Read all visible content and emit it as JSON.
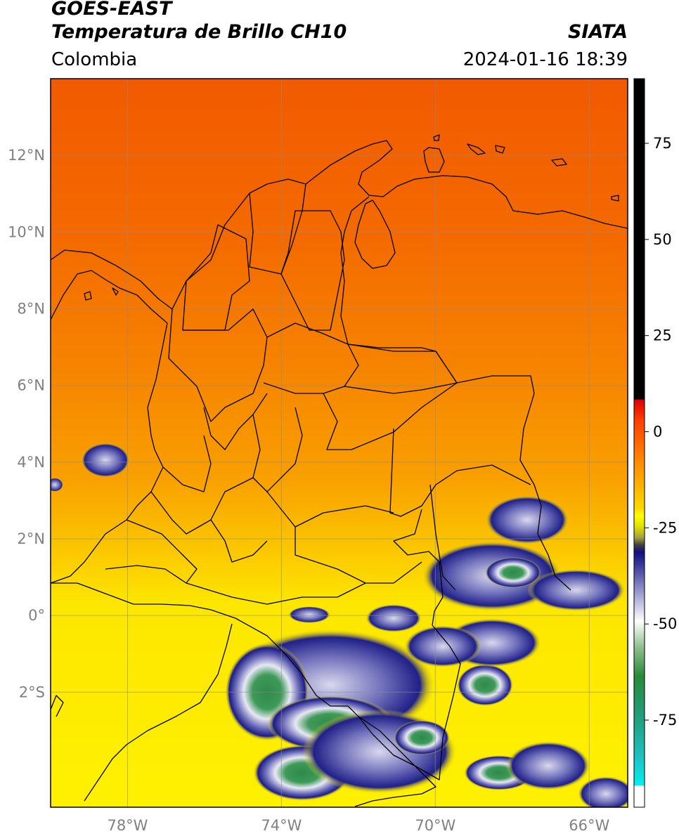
{
  "header": {
    "title_line1": "GOES-EAST",
    "title_line2": "Temperatura de Brillo CH10",
    "organization": "SIATA",
    "region": "Colombia",
    "timestamp": "2024-01-16 18:39"
  },
  "map": {
    "lon_range": [
      -80,
      -65
    ],
    "lat_range": [
      -5,
      14
    ],
    "lat_ticks": [
      {
        "value": 12,
        "label": "12°N"
      },
      {
        "value": 10,
        "label": "10°N"
      },
      {
        "value": 8,
        "label": "8°N"
      },
      {
        "value": 6,
        "label": "6°N"
      },
      {
        "value": 4,
        "label": "4°N"
      },
      {
        "value": 2,
        "label": "2°N"
      },
      {
        "value": 0,
        "label": "0°"
      },
      {
        "value": -2,
        "label": "2°S"
      }
    ],
    "lon_ticks": [
      {
        "value": -78,
        "label": "78°W"
      },
      {
        "value": -74,
        "label": "74°W"
      },
      {
        "value": -70,
        "label": "70°W"
      },
      {
        "value": -66,
        "label": "66°W"
      }
    ],
    "grid": true
  },
  "colorbar": {
    "ticks": [
      {
        "value": 75,
        "label": "75"
      },
      {
        "value": 50,
        "label": "50"
      },
      {
        "value": 25,
        "label": "25"
      },
      {
        "value": 0,
        "label": "0"
      },
      {
        "value": -25,
        "label": "-25"
      },
      {
        "value": -50,
        "label": "-50"
      },
      {
        "value": -75,
        "label": "-75"
      }
    ]
  }
}
